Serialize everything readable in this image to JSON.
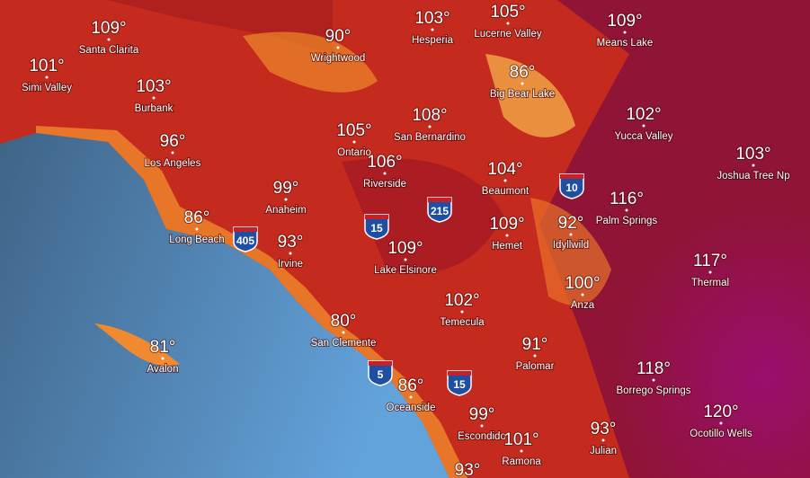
{
  "cities": [
    {
      "temp": "109°",
      "name": "Santa Clarita"
    },
    {
      "temp": "101°",
      "name": "Simi Valley"
    },
    {
      "temp": "103°",
      "name": "Burbank"
    },
    {
      "temp": "96°",
      "name": "Los Angeles"
    },
    {
      "temp": "86°",
      "name": "Long Beach"
    },
    {
      "temp": "93°",
      "name": "Irvine"
    },
    {
      "temp": "99°",
      "name": "Anaheim"
    },
    {
      "temp": "90°",
      "name": "Wrightwood"
    },
    {
      "temp": "103°",
      "name": "Hesperia"
    },
    {
      "temp": "105°",
      "name": "Lucerne Valley"
    },
    {
      "temp": "109°",
      "name": "Means Lake"
    },
    {
      "temp": "86°",
      "name": "Big Bear Lake"
    },
    {
      "temp": "102°",
      "name": "Yucca Valley"
    },
    {
      "temp": "108°",
      "name": "San Bernardino"
    },
    {
      "temp": "105°",
      "name": "Ontario"
    },
    {
      "temp": "106°",
      "name": "Riverside"
    },
    {
      "temp": "104°",
      "name": "Beaumont"
    },
    {
      "temp": "103°",
      "name": "Joshua Tree Np"
    },
    {
      "temp": "116°",
      "name": "Palm Springs"
    },
    {
      "temp": "92°",
      "name": "Idyllwild"
    },
    {
      "temp": "109°",
      "name": "Hemet"
    },
    {
      "temp": "109°",
      "name": "Lake Elsinore"
    },
    {
      "temp": "102°",
      "name": "Temecula"
    },
    {
      "temp": "100°",
      "name": "Anza"
    },
    {
      "temp": "117°",
      "name": "Thermal"
    },
    {
      "temp": "80°",
      "name": "San Clemente"
    },
    {
      "temp": "81°",
      "name": "Avalon"
    },
    {
      "temp": "91°",
      "name": "Palomar"
    },
    {
      "temp": "118°",
      "name": "Borrego Springs"
    },
    {
      "temp": "86°",
      "name": "Oceanside"
    },
    {
      "temp": "99°",
      "name": "Escondido"
    },
    {
      "temp": "101°",
      "name": "Ramona"
    },
    {
      "temp": "93°",
      "name": "Julian"
    },
    {
      "temp": "120°",
      "name": "Ocotillo Wells"
    },
    {
      "temp": "93°"
    }
  ],
  "highways": [
    "405",
    "15",
    "215",
    "10",
    "5",
    "15"
  ]
}
